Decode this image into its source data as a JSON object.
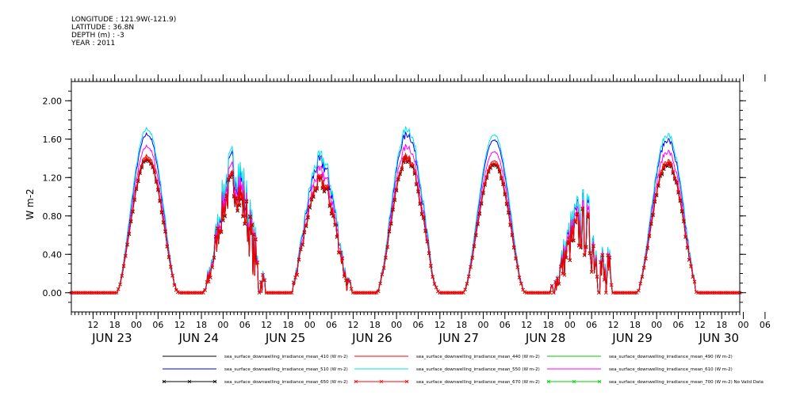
{
  "header": {
    "longitude": "LONGITUDE : 121.9W(-121.9)",
    "latitude": "LATITUDE : 36.8N",
    "depth": "DEPTH (m) : -3",
    "year": "YEAR : 2011"
  },
  "chart_data": {
    "type": "line",
    "title": "",
    "xlabel": "",
    "ylabel": "W m-2",
    "x_range_hours": [
      0,
      185
    ],
    "ylim": [
      -0.2,
      2.2
    ],
    "yticks": [
      0.0,
      0.4,
      0.8,
      1.2,
      1.6,
      2.0
    ],
    "ytick_labels": [
      "0.00",
      "0.40",
      "0.80",
      "1.20",
      "1.60",
      "2.00"
    ],
    "hour_ticks": [
      "12",
      "18",
      "00",
      "06",
      "12",
      "18",
      "00",
      "06",
      "12",
      "18",
      "00",
      "06",
      "12",
      "18",
      "00",
      "06",
      "12",
      "18",
      "00",
      "06",
      "12",
      "18",
      "00",
      "06",
      "12",
      "18",
      "00",
      "06",
      "12",
      "18",
      "00",
      "06"
    ],
    "day_labels": [
      "JUN 23",
      "JUN 24",
      "JUN 25",
      "JUN 26",
      "JUN 27",
      "JUN 28",
      "JUN 29",
      "JUN 30"
    ],
    "grid": false,
    "legend_position": "bottom",
    "days": [
      {
        "peak": 1.4,
        "noise": 0.02
      },
      {
        "peak": 1.1,
        "noise": 0.22
      },
      {
        "peak": 1.15,
        "noise": 0.08
      },
      {
        "peak": 1.4,
        "noise": 0.04
      },
      {
        "peak": 1.35,
        "noise": 0.01
      },
      {
        "peak": 0.65,
        "noise": 0.28
      },
      {
        "peak": 1.35,
        "noise": 0.03
      }
    ],
    "series": [
      {
        "name": "sea_surface_downwelling_irradiance_mean_410 (W m-2)",
        "color": "#000000",
        "scale": 1.0,
        "marker": "none"
      },
      {
        "name": "sea_surface_downwelling_irradiance_mean_440 (W m-2)",
        "color": "#ff0000",
        "scale": 1.02,
        "marker": "none"
      },
      {
        "name": "sea_surface_downwelling_irradiance_mean_490 (W m-2)",
        "color": "#00cc00",
        "scale": 1.0,
        "marker": "none"
      },
      {
        "name": "sea_surface_downwelling_irradiance_mean_510 (W m-2)",
        "color": "#0000ff",
        "scale": 1.18,
        "marker": "none"
      },
      {
        "name": "sea_surface_downwelling_irradiance_mean_550 (W m-2)",
        "color": "#00e5e5",
        "scale": 1.22,
        "marker": "none"
      },
      {
        "name": "sea_surface_downwelling_irradiance_mean_610 (W m-2)",
        "color": "#ff00ff",
        "scale": 1.09,
        "marker": "none"
      },
      {
        "name": "sea_surface_downwelling_irradiance_mean_650 (W m-2)",
        "color": "#000000",
        "scale": 0.99,
        "marker": "x"
      },
      {
        "name": "sea_surface_downwelling_irradiance_mean_670 (W m-2)",
        "color": "#ff0000",
        "scale": 1.0,
        "marker": "x"
      },
      {
        "name": "sea_surface_downwelling_irradiance_mean_700 (W m-2) No Valid Data",
        "color": "#00cc00",
        "scale": 0.0,
        "marker": "x"
      }
    ]
  }
}
